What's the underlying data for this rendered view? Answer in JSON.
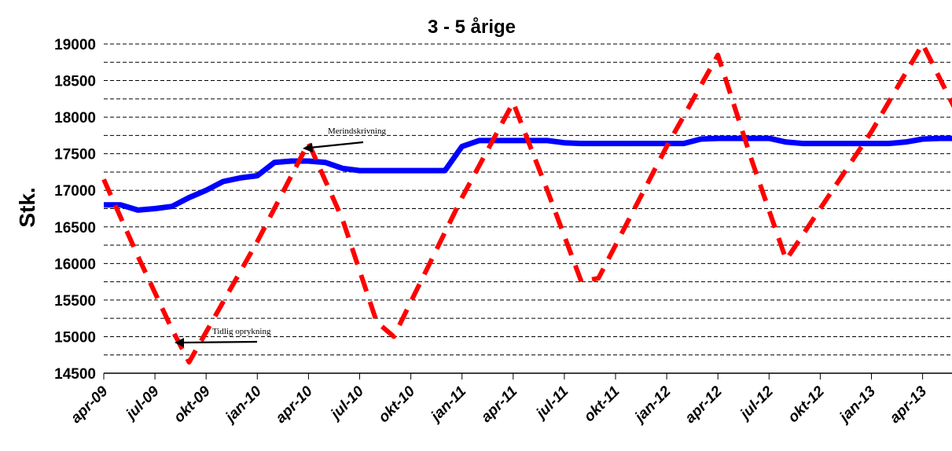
{
  "chart_data": {
    "type": "line",
    "title": "3 - 5 årige",
    "xlabel": "",
    "ylabel": "Stk.",
    "ylim": [
      14500,
      19000
    ],
    "yticks": [
      14500,
      15000,
      15500,
      16000,
      16500,
      17000,
      17500,
      18000,
      18500,
      19000
    ],
    "ytick_labels": [
      "14500",
      "15000",
      "15500",
      "16000",
      "16500",
      "17000",
      "17500",
      "18000",
      "18500",
      "19000"
    ],
    "grid": "horizontal-dashed",
    "x_month_start": "apr-09",
    "x_month_end": "jul-13",
    "xtick_labels": [
      "apr-09",
      "jul-09",
      "okt-09",
      "jan-10",
      "apr-10",
      "jul-10",
      "okt-10",
      "jan-11",
      "apr-11",
      "jul-11",
      "okt-11",
      "jan-12",
      "apr-12",
      "jul-12",
      "okt-12",
      "jan-13",
      "apr-13"
    ],
    "series": [
      {
        "color": "#0000ff",
        "style": "solid",
        "x": [
          "apr-09",
          "maj-09",
          "jun-09",
          "jul-09",
          "aug-09",
          "sep-09",
          "okt-09",
          "nov-09",
          "dec-09",
          "jan-10",
          "feb-10",
          "mar-10",
          "apr-10",
          "maj-10",
          "jun-10",
          "jul-10",
          "aug-10",
          "sep-10",
          "okt-10",
          "nov-10",
          "dec-10",
          "jan-11",
          "feb-11",
          "mar-11",
          "apr-11",
          "maj-11",
          "jun-11",
          "jul-11",
          "aug-11",
          "sep-11",
          "okt-11",
          "nov-11",
          "dec-11",
          "jan-12",
          "feb-12",
          "mar-12",
          "apr-12",
          "maj-12",
          "jun-12",
          "jul-12",
          "aug-12",
          "sep-12",
          "okt-12",
          "nov-12",
          "dec-12",
          "jan-13",
          "feb-13",
          "mar-13",
          "apr-13",
          "maj-13",
          "jun-13",
          "jul-13"
        ],
        "values": [
          16800,
          16800,
          16730,
          16750,
          16780,
          16900,
          17000,
          17120,
          17170,
          17200,
          17380,
          17400,
          17400,
          17380,
          17300,
          17270,
          17270,
          17270,
          17270,
          17270,
          17270,
          17600,
          17680,
          17680,
          17680,
          17680,
          17680,
          17650,
          17640,
          17640,
          17640,
          17640,
          17640,
          17640,
          17640,
          17700,
          17710,
          17710,
          17710,
          17710,
          17660,
          17640,
          17640,
          17640,
          17640,
          17640,
          17640,
          17660,
          17700,
          17710,
          17710,
          17710
        ]
      },
      {
        "color": "#ff0000",
        "style": "dashed",
        "x": [
          "apr-09",
          "jun-09",
          "aug-09",
          "sep-09",
          "jan-10",
          "apr-10",
          "jun-10",
          "aug-10",
          "sep-10",
          "jan-11",
          "apr-11",
          "jun-11",
          "aug-11",
          "sep-11",
          "jan-12",
          "apr-12",
          "jun-12",
          "aug-12",
          "jan-13",
          "apr-13",
          "jul-13"
        ],
        "values": [
          17150,
          16100,
          15100,
          14650,
          16300,
          17650,
          16600,
          15200,
          15000,
          16900,
          18200,
          17000,
          15750,
          15800,
          17600,
          18850,
          17400,
          16050,
          17800,
          19000,
          17600
        ]
      }
    ],
    "annotations": [
      {
        "text": "Merindskrivning",
        "at_x": "apr-10",
        "at_y": 17600
      },
      {
        "text": "Tidlig oprykning",
        "at_x": "okt-09",
        "at_y": 14950
      }
    ]
  }
}
